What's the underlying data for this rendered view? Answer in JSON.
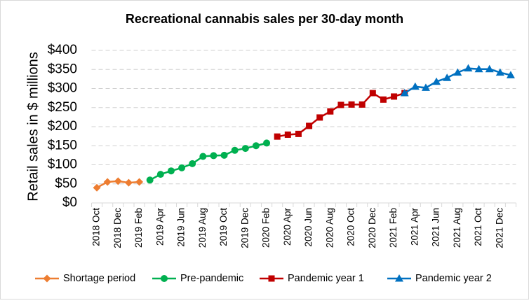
{
  "chart_data": {
    "type": "line",
    "title": "Recreational cannabis sales per 30-day month",
    "y_label": "Retail sales in $ millions",
    "categories": [
      "2018 Oct",
      null,
      "2018 Dec",
      null,
      "2019 Feb",
      null,
      "2019 Apr",
      null,
      "2019 Jun",
      null,
      "2019 Aug",
      null,
      "2019 Oct",
      null,
      "2019 Dec",
      null,
      "2020 Feb",
      null,
      "2020 Apr",
      null,
      "2020 Jun",
      null,
      "2020 Aug",
      null,
      "2020 Oct",
      null,
      "2020 Dec",
      null,
      "2021 Feb",
      null,
      "2021 Apr",
      null,
      "2021 Jun",
      null,
      "2021 Aug",
      null,
      "2021 Oct",
      null,
      "2021 Dec",
      null
    ],
    "series": [
      {
        "name": "Shortage period",
        "color": "#ed7d31",
        "marker": "diamond",
        "values": [
          40,
          55,
          57,
          53,
          55,
          null,
          null,
          null,
          null,
          null,
          null,
          null,
          null,
          null,
          null,
          null,
          null,
          null,
          null,
          null,
          null,
          null,
          null,
          null,
          null,
          null,
          null,
          null,
          null,
          null,
          null,
          null,
          null,
          null,
          null,
          null,
          null,
          null,
          null,
          null
        ]
      },
      {
        "name": "Pre-pandemic",
        "color": "#00b050",
        "marker": "circle",
        "values": [
          null,
          null,
          null,
          null,
          null,
          60,
          75,
          84,
          92,
          103,
          122,
          124,
          125,
          138,
          143,
          150,
          157,
          null,
          null,
          null,
          null,
          null,
          null,
          null,
          null,
          null,
          null,
          null,
          null,
          null,
          null,
          null,
          null,
          null,
          null,
          null,
          null,
          null,
          null,
          null
        ]
      },
      {
        "name": "Pandemic year 1",
        "color": "#c00000",
        "marker": "square",
        "values": [
          null,
          null,
          null,
          null,
          null,
          null,
          null,
          null,
          null,
          null,
          null,
          null,
          null,
          null,
          null,
          null,
          null,
          174,
          179,
          181,
          202,
          224,
          240,
          257,
          258,
          258,
          288,
          271,
          279,
          288,
          null,
          null,
          null,
          null,
          null,
          null,
          null,
          null,
          null,
          null
        ]
      },
      {
        "name": "Pandemic year 2",
        "color": "#0070c0",
        "marker": "triangle",
        "values": [
          null,
          null,
          null,
          null,
          null,
          null,
          null,
          null,
          null,
          null,
          null,
          null,
          null,
          null,
          null,
          null,
          null,
          null,
          null,
          null,
          null,
          null,
          null,
          null,
          null,
          null,
          null,
          null,
          null,
          288,
          305,
          302,
          318,
          328,
          342,
          353,
          351,
          351,
          342,
          335
        ]
      }
    ],
    "ylim": [
      0,
      400
    ],
    "yticks": [
      {
        "value": 0,
        "label": "$0"
      },
      {
        "value": 50,
        "label": "$50"
      },
      {
        "value": 100,
        "label": "$100"
      },
      {
        "value": 150,
        "label": "$150"
      },
      {
        "value": 200,
        "label": "$200"
      },
      {
        "value": 250,
        "label": "$250"
      },
      {
        "value": 300,
        "label": "$300"
      },
      {
        "value": 350,
        "label": "$350"
      },
      {
        "value": 400,
        "label": "$400"
      }
    ],
    "grid": true,
    "legend": "bottom"
  }
}
